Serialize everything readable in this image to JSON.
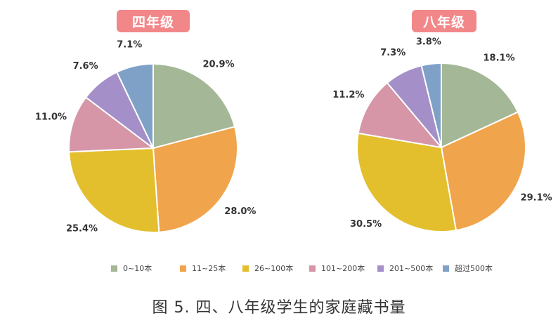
{
  "caption": "图 5. 四、八年级学生的家庭藏书量",
  "legend": {
    "items": [
      {
        "label": "0~10本",
        "color": "#a4b796"
      },
      {
        "label": "11~25本",
        "color": "#f0a44b"
      },
      {
        "label": "26~100本",
        "color": "#e3bf2d"
      },
      {
        "label": "101~200本",
        "color": "#d696a8"
      },
      {
        "label": "201~500本",
        "color": "#a48fc8"
      },
      {
        "label": "超过500本",
        "color": "#7fa1c7"
      }
    ]
  },
  "chart_data": [
    {
      "type": "pie",
      "title": "四年级",
      "categories": [
        "0~10本",
        "11~25本",
        "26~100本",
        "101~200本",
        "201~500本",
        "超过500本"
      ],
      "values": [
        20.9,
        28.0,
        25.4,
        11.0,
        7.6,
        7.1
      ],
      "labels": [
        "20.9%",
        "28.0%",
        "25.4%",
        "11.0%",
        "7.6%",
        "7.1%"
      ]
    },
    {
      "type": "pie",
      "title": "八年级",
      "categories": [
        "0~10本",
        "11~25本",
        "26~100本",
        "101~200本",
        "201~500本",
        "超过500本"
      ],
      "values": [
        18.1,
        29.1,
        30.5,
        11.2,
        7.3,
        3.8
      ],
      "labels": [
        "18.1%",
        "29.1%",
        "30.5%",
        "11.2%",
        "7.3%",
        "3.8%"
      ]
    }
  ]
}
